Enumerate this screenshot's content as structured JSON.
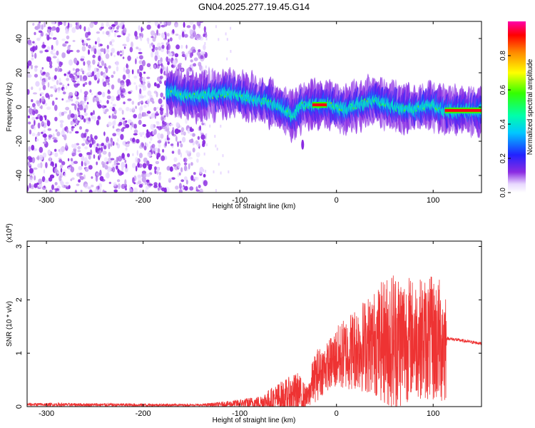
{
  "title": "GN04.2025.277.19.45.G14",
  "chart_data": [
    {
      "type": "heatmap",
      "xlabel": "Height of straight line (km)",
      "ylabel": "Frequency (Hz)",
      "xlim": [
        -320,
        150
      ],
      "ylim": [
        -50,
        50
      ],
      "x_ticks": [
        -300,
        -200,
        -100,
        0,
        100
      ],
      "y_ticks": [
        40,
        20,
        0,
        -20,
        -40
      ],
      "colorbar": {
        "label": "Normalized spectral amplitude",
        "range": [
          0,
          1
        ],
        "ticks": [
          0.0,
          0.2,
          0.4,
          0.6,
          0.8
        ]
      },
      "ridge": {
        "x": [
          -170,
          -150,
          -130,
          -110,
          -90,
          -70,
          -55,
          -45,
          -35,
          -20,
          -10,
          0,
          10,
          20,
          40,
          60,
          80,
          100,
          112,
          150
        ],
        "freq": [
          9,
          6,
          7,
          8,
          5,
          3,
          -1,
          -5,
          1,
          1,
          2,
          0,
          -2,
          1,
          4,
          0,
          -1,
          1,
          -2,
          -2
        ]
      },
      "noise_region": {
        "x_from": -320,
        "x_to": -135
      }
    },
    {
      "type": "line",
      "xlabel": "Height of straight line (km)",
      "ylabel": "SNR (10 * v/v)",
      "multiplier_label": "(x10",
      "multiplier_exp": "4",
      "multiplier_close": ")",
      "xlim": [
        -320,
        150
      ],
      "ylim": [
        0,
        3.1
      ],
      "x_ticks": [
        -300,
        -200,
        -100,
        0,
        100
      ],
      "y_ticks": [
        0,
        1,
        2,
        3
      ],
      "series": [
        {
          "name": "SNR",
          "color": "#ee3333",
          "envelope_x": [
            -320,
            -200,
            -140,
            -110,
            -80,
            -60,
            -40,
            -30,
            -25,
            -20,
            -10,
            0,
            20,
            40,
            60,
            80,
            100,
            113,
            114,
            150
          ],
          "envelope_base": [
            0.04,
            0.03,
            0.03,
            0.05,
            0.08,
            0.15,
            0.25,
            0.15,
            0.45,
            0.6,
            0.75,
            0.9,
            1.1,
            1.2,
            1.25,
            1.3,
            1.25,
            1.2,
            1.28,
            1.18
          ],
          "envelope_amp": [
            0.03,
            0.03,
            0.02,
            0.06,
            0.12,
            0.3,
            0.4,
            0.2,
            0.4,
            0.5,
            0.45,
            0.6,
            0.8,
            1.0,
            1.4,
            1.1,
            1.2,
            1.2,
            0.03,
            0.03
          ]
        }
      ]
    }
  ]
}
